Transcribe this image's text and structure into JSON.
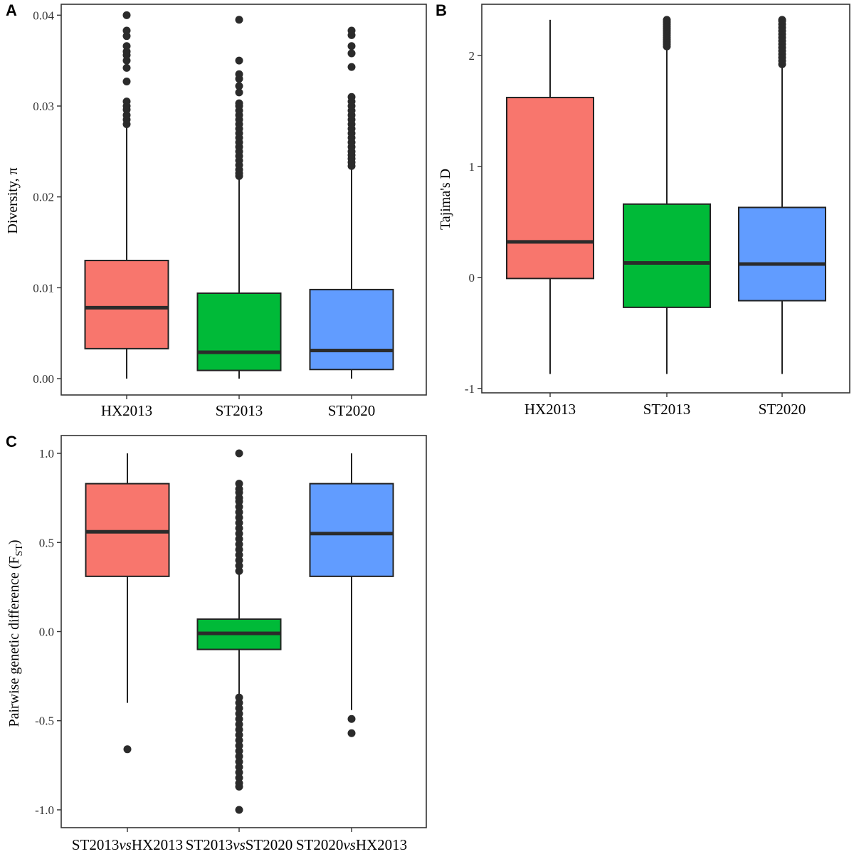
{
  "chart_data": [
    {
      "panel": "A",
      "type": "box",
      "ylabel": "Diversity, π",
      "ylim": [
        -0.0018,
        0.0412
      ],
      "yticks": [
        0.0,
        0.01,
        0.02,
        0.03,
        0.04
      ],
      "ytick_labels": [
        "0.00",
        "0.01",
        "0.02",
        "0.03",
        "0.04"
      ],
      "categories": [
        {
          "label": "HX2013"
        },
        {
          "label": "ST2013"
        },
        {
          "label": "ST2020"
        }
      ],
      "boxes": [
        {
          "color": "#F8766D",
          "whisker_low": 0.0,
          "q1": 0.0033,
          "median": 0.0078,
          "q3": 0.013,
          "whisker_high": 0.0276,
          "outliers": [
            0.028,
            0.0285,
            0.029,
            0.0296,
            0.03,
            0.0305,
            0.0327,
            0.0342,
            0.035,
            0.0356,
            0.036,
            0.0366,
            0.0377,
            0.0383,
            0.04
          ]
        },
        {
          "color": "#00BA38",
          "whisker_low": 0.0,
          "q1": 0.0009,
          "median": 0.0029,
          "q3": 0.0094,
          "whisker_high": 0.022,
          "outliers": [
            0.0223,
            0.0226,
            0.023,
            0.0235,
            0.024,
            0.0245,
            0.025,
            0.0255,
            0.026,
            0.0265,
            0.027,
            0.0275,
            0.028,
            0.0285,
            0.029,
            0.0295,
            0.03,
            0.0303,
            0.0315,
            0.0322,
            0.033,
            0.0335,
            0.035,
            0.0395
          ]
        },
        {
          "color": "#619CFF",
          "whisker_low": 0.0,
          "q1": 0.001,
          "median": 0.0031,
          "q3": 0.0098,
          "whisker_high": 0.023,
          "outliers": [
            0.0234,
            0.0238,
            0.0242,
            0.0246,
            0.025,
            0.0255,
            0.026,
            0.0265,
            0.027,
            0.0275,
            0.028,
            0.0285,
            0.029,
            0.0295,
            0.03,
            0.0305,
            0.031,
            0.0343,
            0.0358,
            0.0366,
            0.0378,
            0.0383
          ]
        }
      ]
    },
    {
      "panel": "B",
      "type": "box",
      "ylabel": "Tajima's D",
      "ylim": [
        -1.04,
        2.46
      ],
      "yticks": [
        -1,
        0,
        1,
        2
      ],
      "ytick_labels": [
        "-1",
        "0",
        "1",
        "2"
      ],
      "categories": [
        {
          "label": "HX2013"
        },
        {
          "label": "ST2013"
        },
        {
          "label": "ST2020"
        }
      ],
      "boxes": [
        {
          "color": "#F8766D",
          "whisker_low": -0.87,
          "q1": -0.01,
          "median": 0.32,
          "q3": 1.62,
          "whisker_high": 2.32,
          "outliers": []
        },
        {
          "color": "#00BA38",
          "whisker_low": -0.87,
          "q1": -0.27,
          "median": 0.13,
          "q3": 0.66,
          "whisker_high": 2.05,
          "outliers": [
            2.08,
            2.1,
            2.12,
            2.14,
            2.16,
            2.18,
            2.2,
            2.22,
            2.24,
            2.26,
            2.28,
            2.3,
            2.32
          ]
        },
        {
          "color": "#619CFF",
          "whisker_low": -0.87,
          "q1": -0.21,
          "median": 0.12,
          "q3": 0.63,
          "whisker_high": 1.89,
          "outliers": [
            1.92,
            1.95,
            1.98,
            2.01,
            2.04,
            2.07,
            2.1,
            2.13,
            2.16,
            2.19,
            2.22,
            2.25,
            2.28,
            2.31,
            2.32
          ]
        }
      ]
    },
    {
      "panel": "C",
      "type": "box",
      "ylabel_main": "Pairwise genetic difference (F",
      "ylabel_sub": "ST",
      "ylabel_end": ")",
      "ylim": [
        -1.1,
        1.1
      ],
      "yticks": [
        -1.0,
        -0.5,
        0.0,
        0.5,
        1.0
      ],
      "ytick_labels": [
        "-1.0",
        "-0.5",
        "0.0",
        "0.5",
        "1.0"
      ],
      "categories": [
        {
          "pre": "ST2013",
          "mid": "vs",
          "post": "HX2013"
        },
        {
          "pre": "ST2013",
          "mid": "vs",
          "post": "ST2020"
        },
        {
          "pre": "ST2020",
          "mid": "vs",
          "post": "HX2013"
        }
      ],
      "boxes": [
        {
          "color": "#F8766D",
          "whisker_low": -0.4,
          "q1": 0.31,
          "median": 0.56,
          "q3": 0.83,
          "whisker_high": 1.0,
          "outliers": [
            -0.66
          ]
        },
        {
          "color": "#00BA38",
          "whisker_low": -0.35,
          "q1": -0.1,
          "median": -0.01,
          "q3": 0.07,
          "whisker_high": 0.32,
          "outliers": [
            0.34,
            0.37,
            0.4,
            0.43,
            0.46,
            0.49,
            0.52,
            0.55,
            0.58,
            0.61,
            0.64,
            0.67,
            0.7,
            0.73,
            0.75,
            0.78,
            0.8,
            0.83,
            1.0,
            -0.37,
            -0.4,
            -0.43,
            -0.46,
            -0.49,
            -0.52,
            -0.55,
            -0.58,
            -0.61,
            -0.64,
            -0.67,
            -0.7,
            -0.73,
            -0.76,
            -0.79,
            -0.82,
            -0.85,
            -0.87,
            -1.0
          ]
        },
        {
          "color": "#619CFF",
          "whisker_low": -0.44,
          "q1": 0.31,
          "median": 0.55,
          "q3": 0.83,
          "whisker_high": 1.0,
          "outliers": [
            -0.49,
            -0.57
          ]
        }
      ]
    }
  ]
}
